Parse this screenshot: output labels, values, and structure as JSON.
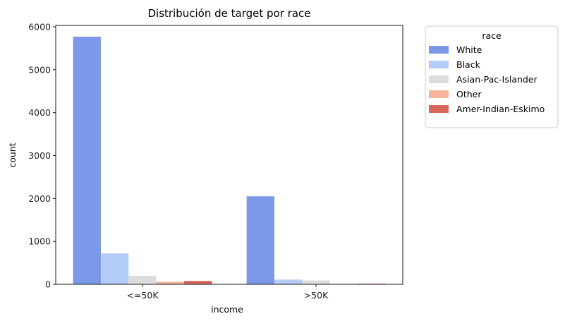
{
  "chart_data": {
    "type": "bar",
    "title": "Distribución de target por race",
    "xlabel": "income",
    "ylabel": "count",
    "categories": [
      "<=50K",
      ">50K"
    ],
    "series": [
      {
        "name": "White",
        "values": [
          5770,
          2050
        ],
        "color": "#7b99e6"
      },
      {
        "name": "Black",
        "values": [
          720,
          110
        ],
        "color": "#b3ccfa"
      },
      {
        "name": "Asian-Pac-Islander",
        "values": [
          200,
          90
        ],
        "color": "#dddcdc"
      },
      {
        "name": "Other",
        "values": [
          60,
          10
        ],
        "color": "#f5b49b"
      },
      {
        "name": "Amer-Indian-Eskimo",
        "values": [
          80,
          15
        ],
        "color": "#d7675a"
      }
    ],
    "ylim": [
      0,
      6000
    ],
    "yticks": [
      0,
      1000,
      2000,
      3000,
      4000,
      5000,
      6000
    ],
    "grid": false,
    "legend": {
      "title": "race",
      "placement": "outside-upper-right"
    }
  }
}
